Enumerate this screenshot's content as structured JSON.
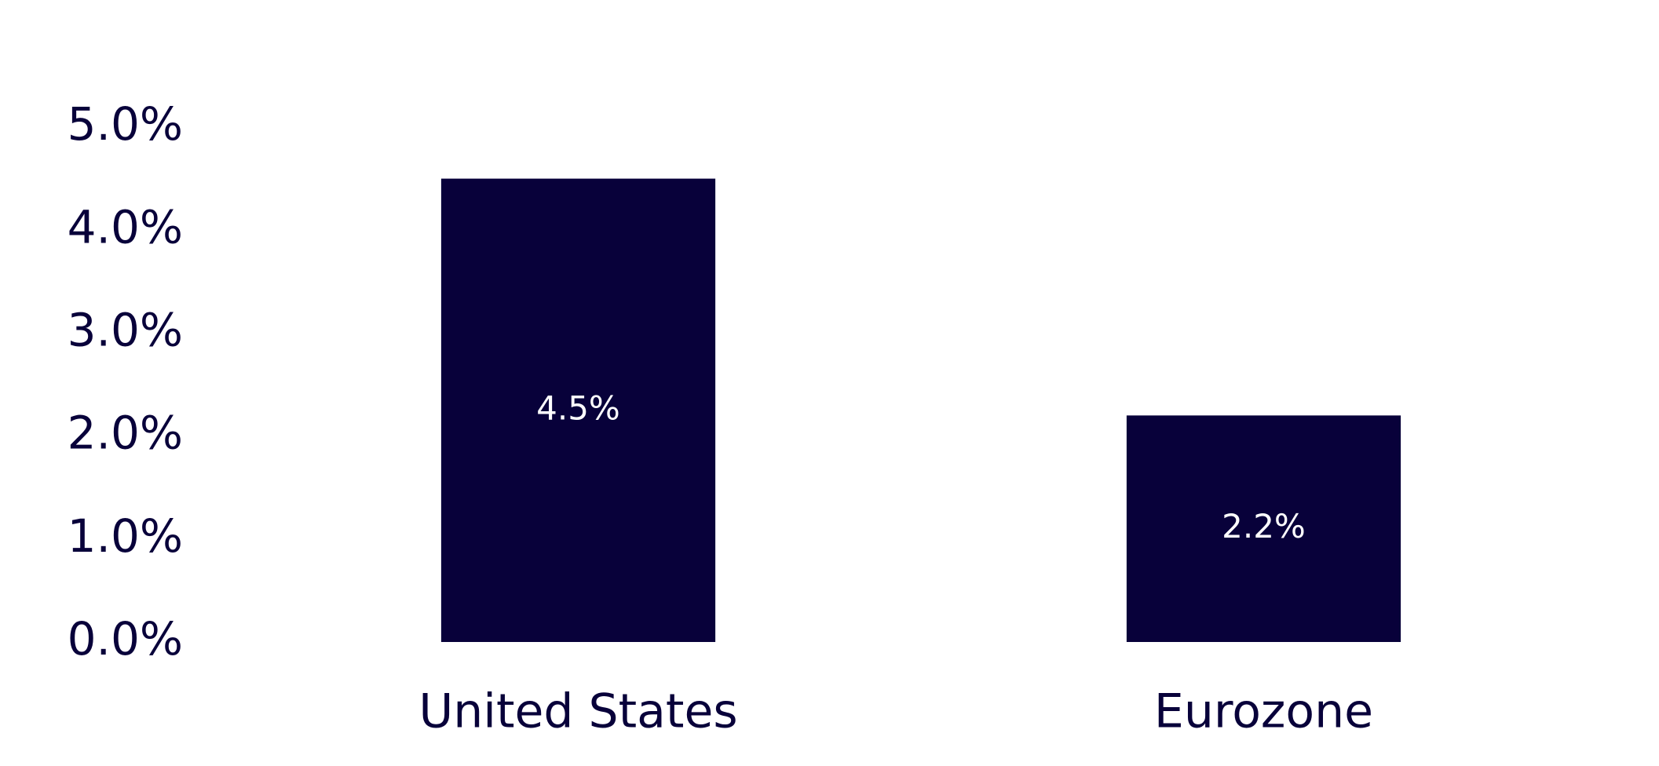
{
  "chart_data": {
    "type": "bar",
    "categories": [
      "United States",
      "Eurozone"
    ],
    "values": [
      4.5,
      2.2
    ],
    "value_labels": [
      "4.5%",
      "2.2%"
    ],
    "color": "#08013a",
    "ylim": [
      0,
      5
    ],
    "yticks": [
      {
        "value": 0,
        "label": "0.0%"
      },
      {
        "value": 1,
        "label": "1.0%"
      },
      {
        "value": 2,
        "label": "2.0%"
      },
      {
        "value": 3,
        "label": "3.0%"
      },
      {
        "value": 4,
        "label": "4.0%"
      },
      {
        "value": 5,
        "label": "5.0%"
      }
    ],
    "grid": false
  }
}
